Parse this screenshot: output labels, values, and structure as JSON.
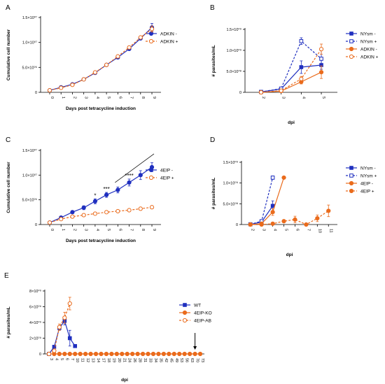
{
  "colors": {
    "blue": "#1f2fbf",
    "orange": "#ea6b1c",
    "axis": "#000000"
  },
  "chart_data": [
    {
      "id": "A",
      "type": "line",
      "panel_label": "A",
      "xlabel": "Days post tetracycline induction",
      "ylabel": "Cumulative cell number",
      "categories": [
        "0",
        "1",
        "2",
        "3",
        "4",
        "5",
        "6",
        "7",
        "8",
        "9"
      ],
      "ylim": [
        0,
        15000000
      ],
      "yticks": [
        0,
        5000000,
        10000000,
        15000000
      ],
      "ytick_labels": [
        "0",
        "5.0×10⁰⁶",
        "1.0×10⁰⁷",
        "1.5×10⁰⁷"
      ],
      "legend": "right",
      "series": [
        {
          "name": "ADKIN -",
          "color": "blue",
          "style": "solid",
          "marker": "filled",
          "values": [
            400000,
            1000000,
            1600000,
            2600000,
            3900000,
            5500000,
            7000000,
            8700000,
            10800000,
            13000000
          ],
          "errors": [
            0,
            0,
            0,
            0,
            0,
            0,
            0,
            0,
            0,
            800000
          ]
        },
        {
          "name": "ADKIN +",
          "color": "orange",
          "style": "dashed",
          "marker": "open",
          "values": [
            400000,
            900000,
            1500000,
            2600000,
            4000000,
            5500000,
            7200000,
            9000000,
            11000000,
            12700000
          ],
          "errors": [
            0,
            0,
            0,
            0,
            0,
            0,
            0,
            0,
            0,
            600000
          ]
        }
      ]
    },
    {
      "id": "B",
      "type": "line",
      "panel_label": "B",
      "xlabel": "dpi",
      "ylabel": "# parasites/mL",
      "categories": [
        "2",
        "3",
        "4",
        "5"
      ],
      "ylim": [
        0,
        1500000000
      ],
      "yticks": [
        0,
        500000000,
        1000000000,
        1500000000
      ],
      "ytick_labels": [
        "0",
        "5.0×10⁰⁸",
        "1.0×10⁰⁹",
        "1.5×10⁰⁹"
      ],
      "legend": "right",
      "series": [
        {
          "name": "NYsm -",
          "color": "blue",
          "style": "solid",
          "marker": "filled-square",
          "values": [
            10000000,
            80000000,
            600000000,
            650000000
          ],
          "errors": [
            0,
            0,
            150000000,
            150000000
          ]
        },
        {
          "name": "NYsm +",
          "color": "blue",
          "style": "dashed",
          "marker": "open-square",
          "values": [
            10000000,
            90000000,
            1220000000,
            800000000
          ],
          "errors": [
            0,
            0,
            80000000,
            250000000
          ]
        },
        {
          "name": "ADKIN  -",
          "color": "orange",
          "style": "solid",
          "marker": "filled",
          "values": [
            0,
            30000000,
            250000000,
            480000000
          ],
          "errors": [
            0,
            0,
            50000000,
            150000000
          ]
        },
        {
          "name": "ADKIN +",
          "color": "orange",
          "style": "dashed",
          "marker": "open",
          "values": [
            0,
            40000000,
            320000000,
            1030000000
          ],
          "errors": [
            0,
            0,
            60000000,
            120000000
          ]
        }
      ]
    },
    {
      "id": "C",
      "type": "line",
      "panel_label": "C",
      "xlabel": "Days post tetracycline induction",
      "ylabel": "Cumulative cell number",
      "categories": [
        "0",
        "1",
        "2",
        "3",
        "4",
        "5",
        "6",
        "7",
        "8",
        "9"
      ],
      "ylim": [
        0,
        15000000
      ],
      "yticks": [
        0,
        5000000,
        10000000,
        15000000
      ],
      "ytick_labels": [
        "0",
        "5.0×10⁰⁶",
        "1.0×10⁰⁷",
        "1.5×10⁰⁷"
      ],
      "legend": "right",
      "annotations": [
        {
          "text": "*",
          "at": 4
        },
        {
          "text": "***",
          "at": 5
        },
        {
          "text": "****",
          "at": 7
        }
      ],
      "series": [
        {
          "name": "4EIP -",
          "color": "blue",
          "style": "solid",
          "marker": "filled",
          "values": [
            400000,
            1400000,
            2500000,
            3400000,
            4700000,
            6000000,
            7000000,
            8500000,
            10000000,
            11600000
          ],
          "errors": [
            0,
            200000,
            300000,
            400000,
            500000,
            500000,
            600000,
            700000,
            900000,
            900000
          ]
        },
        {
          "name": "4EIP +",
          "color": "orange",
          "style": "dashed",
          "marker": "open",
          "values": [
            400000,
            1100000,
            1600000,
            1900000,
            2200000,
            2500000,
            2700000,
            2900000,
            3200000,
            3500000
          ],
          "errors": [
            0,
            100000,
            150000,
            150000,
            200000,
            200000,
            250000,
            250000,
            300000,
            300000
          ]
        }
      ]
    },
    {
      "id": "D",
      "type": "line",
      "panel_label": "D",
      "xlabel": "dpi",
      "ylabel": "# parasites/mL",
      "categories": [
        "2",
        "3",
        "4",
        "5",
        "6",
        "7",
        "10",
        "11"
      ],
      "ylim": [
        0,
        1500000000
      ],
      "yticks": [
        0,
        500000000,
        1000000000,
        1500000000
      ],
      "ytick_labels": [
        "0",
        "5.0×10⁰⁸",
        "1.0×10⁰⁹",
        "1.5×10⁰⁹"
      ],
      "legend": "right",
      "series": [
        {
          "name": "NYsm -",
          "color": "blue",
          "style": "solid",
          "marker": "filled-square",
          "values": [
            5000000,
            60000000,
            450000000,
            null,
            null,
            null,
            null,
            null
          ],
          "errors": [
            0,
            0,
            120000000,
            0,
            0,
            0,
            0,
            0
          ]
        },
        {
          "name": "NYsm +",
          "color": "blue",
          "style": "dashed",
          "marker": "open-square",
          "values": [
            5000000,
            80000000,
            1130000000,
            null,
            null,
            null,
            null,
            null
          ],
          "errors": [
            0,
            0,
            40000000,
            0,
            0,
            0,
            0,
            0
          ]
        },
        {
          "name": "4EIP -",
          "color": "orange",
          "style": "solid",
          "marker": "filled",
          "values": [
            0,
            20000000,
            300000000,
            1130000000,
            null,
            null,
            null,
            null
          ],
          "errors": [
            0,
            0,
            80000000,
            0,
            0,
            0,
            0,
            0
          ]
        },
        {
          "name": "4EIP +",
          "color": "orange",
          "style": "dashed",
          "marker": "filled",
          "values": [
            0,
            0,
            20000000,
            80000000,
            120000000,
            0,
            150000000,
            330000000
          ],
          "errors": [
            0,
            0,
            0,
            0,
            80000000,
            0,
            80000000,
            140000000
          ]
        }
      ]
    },
    {
      "id": "E",
      "type": "line",
      "panel_label": "E",
      "xlabel": "dpi",
      "ylabel": "# parasites/mL",
      "categories": [
        "3",
        "4",
        "5",
        "6",
        "7",
        "10",
        "11",
        "12",
        "13",
        "14",
        "17",
        "18",
        "19",
        "20",
        "21",
        "24",
        "26",
        "28",
        "31",
        "33",
        "34",
        "35",
        "42",
        "45",
        "49",
        "53",
        "56",
        "63",
        "70",
        "73"
      ],
      "ylim": [
        0,
        8000000000
      ],
      "yticks": [
        0,
        2000000000,
        4000000000,
        6000000000,
        8000000000
      ],
      "ytick_labels": [
        "0",
        "2×10⁰⁹",
        "4×10⁰⁹",
        "6×10⁰⁹",
        "8×10⁰⁹"
      ],
      "legend": "right",
      "annotations": [
        {
          "text": "arrow",
          "at": 28
        }
      ],
      "series": [
        {
          "name": "WT",
          "color": "blue",
          "style": "solid",
          "marker": "filled-square",
          "values": [
            0,
            900000000,
            3300000000,
            4200000000,
            2000000000,
            1000000000,
            null,
            null,
            null,
            null,
            null,
            null,
            null,
            null,
            null,
            null,
            null,
            null,
            null,
            null,
            null,
            null,
            null,
            null,
            null,
            null,
            null,
            null,
            null,
            null
          ],
          "errors": [
            0,
            0,
            300000000,
            500000000,
            1000000000,
            0,
            0,
            0,
            0,
            0,
            0,
            0,
            0,
            0,
            0,
            0,
            0,
            0,
            0,
            0,
            0,
            0,
            0,
            0,
            0,
            0,
            0,
            0,
            0,
            0
          ]
        },
        {
          "name": "4EIP-KO",
          "color": "orange",
          "style": "solid",
          "marker": "filled",
          "values": [
            0,
            0,
            0,
            0,
            0,
            0,
            0,
            0,
            0,
            0,
            0,
            0,
            0,
            0,
            0,
            0,
            0,
            0,
            0,
            0,
            0,
            0,
            0,
            0,
            0,
            0,
            0,
            0,
            0,
            0
          ],
          "errors": [
            0,
            0,
            0,
            0,
            0,
            0,
            0,
            0,
            0,
            0,
            0,
            0,
            0,
            0,
            0,
            0,
            0,
            0,
            0,
            0,
            0,
            0,
            0,
            0,
            0,
            0,
            0,
            0,
            0,
            0
          ]
        },
        {
          "name": "4EIP-AB",
          "color": "orange",
          "style": "dashed",
          "marker": "open",
          "values": [
            0,
            400000000,
            3400000000,
            4600000000,
            6400000000,
            null,
            null,
            null,
            null,
            null,
            null,
            null,
            null,
            null,
            null,
            null,
            null,
            null,
            null,
            null,
            null,
            null,
            null,
            null,
            null,
            null,
            null,
            null,
            null,
            null
          ],
          "errors": [
            0,
            0,
            400000000,
            700000000,
            800000000,
            0,
            0,
            0,
            0,
            0,
            0,
            0,
            0,
            0,
            0,
            0,
            0,
            0,
            0,
            0,
            0,
            0,
            0,
            0,
            0,
            0,
            0,
            0,
            0,
            0
          ]
        }
      ]
    }
  ]
}
